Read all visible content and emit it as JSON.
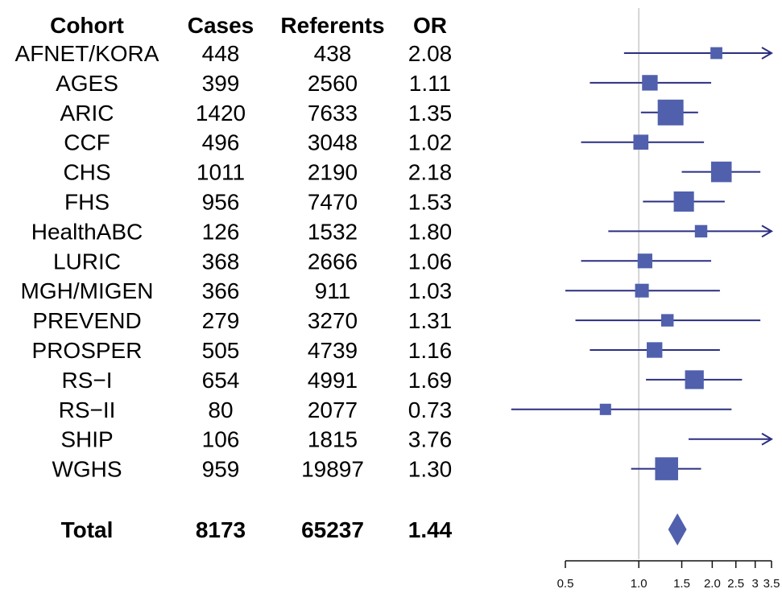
{
  "headers": {
    "cohort": "Cohort",
    "cases": "Cases",
    "referents": "Referents",
    "or": "OR"
  },
  "colors": {
    "marker": "#5060ad",
    "line": "#2b2f80",
    "refline": "#c8c8c8",
    "axis": "#111111"
  },
  "chart_data": {
    "type": "forest",
    "x_scale": "log",
    "xlim": [
      0.5,
      3.5
    ],
    "x_ticks": [
      0.5,
      1.0,
      1.5,
      2.0,
      2.5,
      3,
      3.5
    ],
    "x_tick_labels": [
      "0.5",
      "1.0",
      "1.5",
      "2.0",
      "2.5",
      "3",
      "3.5"
    ],
    "reference_line": 1.0,
    "rows": [
      {
        "cohort": "AFNET/KORA",
        "cases": "448",
        "referents": "438",
        "or": "2.08",
        "or_value": 2.08,
        "ci_low": 0.87,
        "ci_high": 3.5,
        "arrow_right": true,
        "weight": 0.25
      },
      {
        "cohort": "AGES",
        "cases": "399",
        "referents": "2560",
        "or": "1.11",
        "or_value": 1.11,
        "ci_low": 0.63,
        "ci_high": 1.98,
        "arrow_right": false,
        "weight": 0.45
      },
      {
        "cohort": "ARIC",
        "cases": "1420",
        "referents": "7633",
        "or": "1.35",
        "or_value": 1.35,
        "ci_low": 1.02,
        "ci_high": 1.75,
        "arrow_right": false,
        "weight": 1.0
      },
      {
        "cohort": "CCF",
        "cases": "496",
        "referents": "3048",
        "or": "1.02",
        "or_value": 1.02,
        "ci_low": 0.58,
        "ci_high": 1.85,
        "arrow_right": false,
        "weight": 0.42
      },
      {
        "cohort": "CHS",
        "cases": "1011",
        "referents": "2190",
        "or": "2.18",
        "or_value": 2.18,
        "ci_low": 1.5,
        "ci_high": 3.15,
        "arrow_right": false,
        "weight": 0.72
      },
      {
        "cohort": "FHS",
        "cases": "956",
        "referents": "7470",
        "or": "1.53",
        "or_value": 1.53,
        "ci_low": 1.04,
        "ci_high": 2.25,
        "arrow_right": false,
        "weight": 0.7
      },
      {
        "cohort": "HealthABC",
        "cases": "126",
        "referents": "1532",
        "or": "1.80",
        "or_value": 1.8,
        "ci_low": 0.75,
        "ci_high": 3.5,
        "arrow_right": true,
        "weight": 0.28
      },
      {
        "cohort": "LURIC",
        "cases": "368",
        "referents": "2666",
        "or": "1.06",
        "or_value": 1.06,
        "ci_low": 0.58,
        "ci_high": 1.98,
        "arrow_right": false,
        "weight": 0.4
      },
      {
        "cohort": "MGH/MIGEN",
        "cases": "366",
        "referents": "911",
        "or": "1.03",
        "or_value": 1.03,
        "ci_low": 0.5,
        "ci_high": 2.15,
        "arrow_right": false,
        "weight": 0.35
      },
      {
        "cohort": "PREVEND",
        "cases": "279",
        "referents": "3270",
        "or": "1.31",
        "or_value": 1.31,
        "ci_low": 0.55,
        "ci_high": 3.15,
        "arrow_right": false,
        "weight": 0.28
      },
      {
        "cohort": "PROSPER",
        "cases": "505",
        "referents": "4739",
        "or": "1.16",
        "or_value": 1.16,
        "ci_low": 0.63,
        "ci_high": 2.15,
        "arrow_right": false,
        "weight": 0.45
      },
      {
        "cohort": "RS−I",
        "cases": "654",
        "referents": "4991",
        "or": "1.69",
        "or_value": 1.69,
        "ci_low": 1.07,
        "ci_high": 2.65,
        "arrow_right": false,
        "weight": 0.62
      },
      {
        "cohort": "RS−II",
        "cases": "80",
        "referents": "2077",
        "or": "0.73",
        "or_value": 0.73,
        "ci_low": 0.22,
        "ci_high": 2.4,
        "arrow_right": false,
        "weight": 0.22
      },
      {
        "cohort": "SHIP",
        "cases": "106",
        "referents": "1815",
        "or": "3.76",
        "or_value": 3.76,
        "ci_low": 1.6,
        "ci_high": 3.5,
        "arrow_right": true,
        "weight": 0.0
      },
      {
        "cohort": "WGHS",
        "cases": "959",
        "referents": "19897",
        "or": "1.30",
        "or_value": 1.3,
        "ci_low": 0.93,
        "ci_high": 1.8,
        "arrow_right": false,
        "weight": 0.85
      }
    ],
    "total": {
      "label": "Total",
      "cases": "8173",
      "referents": "65237",
      "or": "1.44",
      "or_value": 1.44,
      "ci_low": 1.32,
      "ci_high": 1.57
    }
  }
}
